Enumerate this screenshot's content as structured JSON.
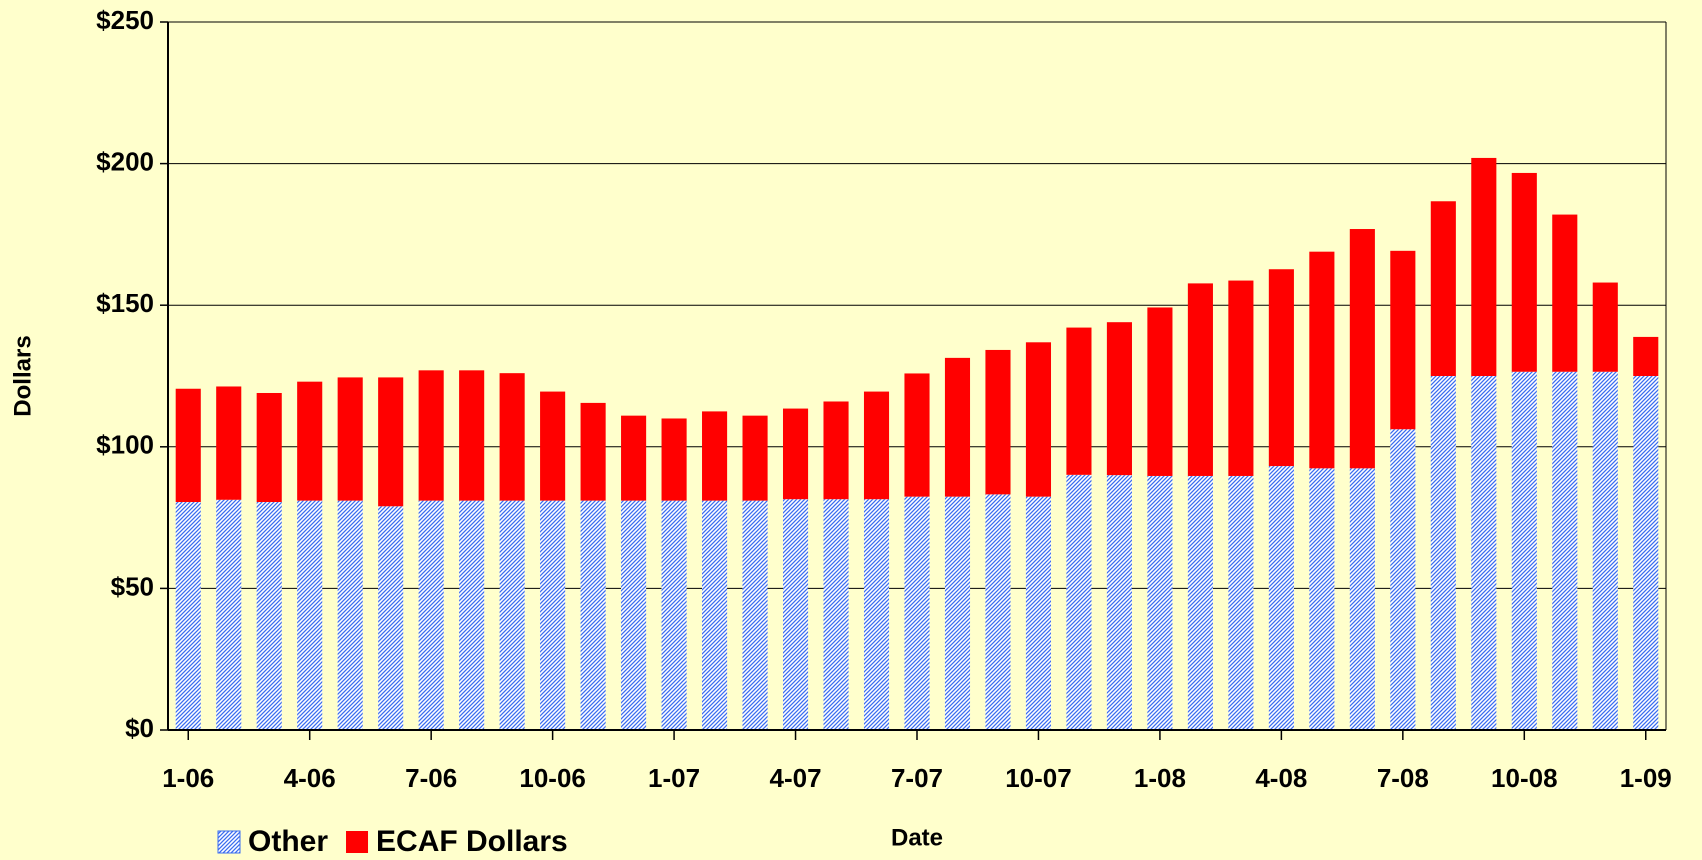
{
  "chart_data": {
    "type": "stacked-bar",
    "xlabel": "Date",
    "ylabel": "Dollars",
    "categories": [
      "1-06",
      null,
      null,
      "4-06",
      null,
      null,
      "7-06",
      null,
      null,
      "10-06",
      null,
      null,
      "1-07",
      null,
      null,
      "4-07",
      null,
      null,
      "7-07",
      null,
      null,
      "10-07",
      null,
      null,
      "1-08",
      null,
      null,
      "4-08",
      null,
      null,
      "7-08",
      null,
      null,
      "10-08",
      null,
      null,
      "1-09"
    ],
    "series": [
      {
        "name": "Other",
        "color": "#3a6cf0",
        "pattern": "hatch",
        "values": [
          80.5,
          81.3,
          80.5,
          81,
          81,
          79,
          81,
          81,
          81,
          81,
          81,
          81,
          81,
          81,
          81,
          81.5,
          81.5,
          81.5,
          82.4,
          82.4,
          83.2,
          82.4,
          90.1,
          90,
          89.7,
          89.7,
          89.7,
          93.2,
          92.4,
          92.4,
          106.2,
          125,
          125,
          126.5,
          126.5,
          126.5,
          125
        ]
      },
      {
        "name": "ECAF Dollars",
        "color": "#ff0000",
        "values": [
          40,
          40,
          38.5,
          42,
          43.5,
          45.5,
          46,
          46,
          45,
          38.5,
          34.5,
          30,
          29,
          31.5,
          30,
          32,
          34.5,
          38,
          43.5,
          49,
          51,
          54.5,
          52,
          54,
          59.5,
          68,
          69,
          69.5,
          76.5,
          84.5,
          63,
          61.7,
          77,
          70.2,
          55.5,
          31.5,
          13.8
        ]
      }
    ],
    "ylim": [
      0,
      250
    ],
    "yticks": [
      {
        "value": 0,
        "label": "$0"
      },
      {
        "value": 50,
        "label": "$50"
      },
      {
        "value": 100,
        "label": "$100"
      },
      {
        "value": 150,
        "label": "$150"
      },
      {
        "value": 200,
        "label": "$200"
      },
      {
        "value": 250,
        "label": "$250"
      }
    ],
    "grid": true,
    "legend": "bottom-left"
  }
}
